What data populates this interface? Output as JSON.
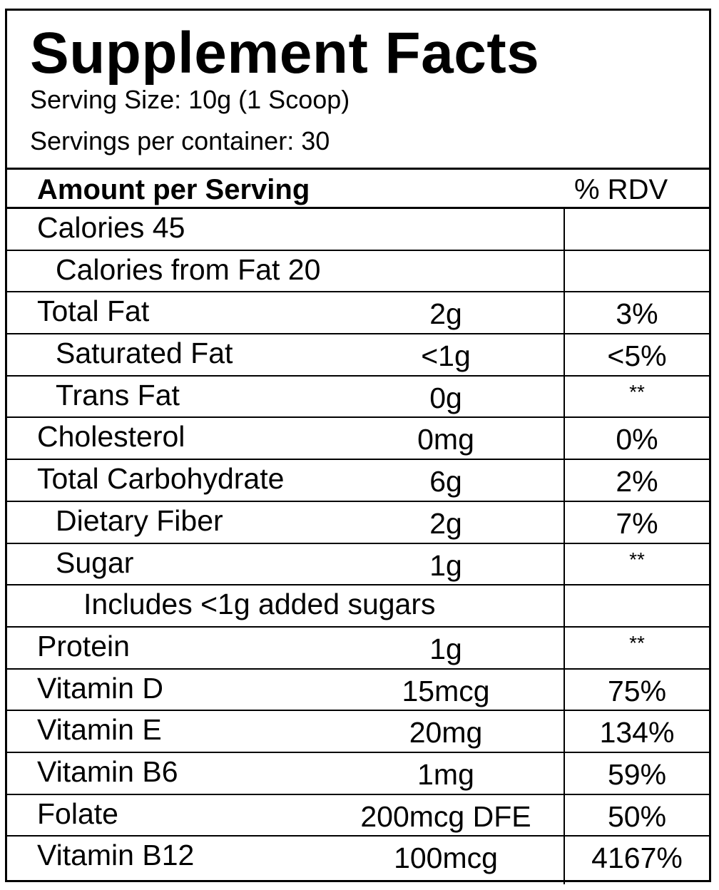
{
  "title": "Supplement Facts",
  "serving_size": "Serving Size: 10g (1 Scoop)",
  "servings_per_container": "Servings per container: 30",
  "header": {
    "amount": "Amount per Serving",
    "rdv": "% RDV"
  },
  "rows": [
    {
      "name": "Calories 45",
      "amount": "",
      "rdv": "",
      "indent": 0
    },
    {
      "name": "Calories from Fat 20",
      "amount": "",
      "rdv": "",
      "indent": 1
    },
    {
      "name": "Total Fat",
      "amount": "2g",
      "rdv": "3%",
      "indent": 0
    },
    {
      "name": "Saturated Fat",
      "amount": "<1g",
      "rdv": "<5%",
      "indent": 1
    },
    {
      "name": "Trans Fat",
      "amount": "0g",
      "rdv": "**",
      "indent": 1
    },
    {
      "name": "Cholesterol",
      "amount": "0mg",
      "rdv": "0%",
      "indent": 0
    },
    {
      "name": "Total Carbohydrate",
      "amount": "6g",
      "rdv": "2%",
      "indent": 0
    },
    {
      "name": "Dietary Fiber",
      "amount": "2g",
      "rdv": "7%",
      "indent": 1
    },
    {
      "name": "Sugar",
      "amount": "1g",
      "rdv": "**",
      "indent": 1
    },
    {
      "name": "Includes <1g added sugars",
      "amount": "",
      "rdv": "",
      "indent": 2
    },
    {
      "name": "Protein",
      "amount": "1g",
      "rdv": "**",
      "indent": 0
    },
    {
      "name": "Vitamin D",
      "amount": "15mcg",
      "rdv": "75%",
      "indent": 0
    },
    {
      "name": "Vitamin E",
      "amount": "20mg",
      "rdv": "134%",
      "indent": 0
    },
    {
      "name": "Vitamin B6",
      "amount": "1mg",
      "rdv": "59%",
      "indent": 0
    },
    {
      "name": "Folate",
      "amount": "200mcg DFE",
      "rdv": "50%",
      "indent": 0
    },
    {
      "name": "Vitamin B12",
      "amount": "100mcg",
      "rdv": "4167%",
      "indent": 0
    }
  ]
}
